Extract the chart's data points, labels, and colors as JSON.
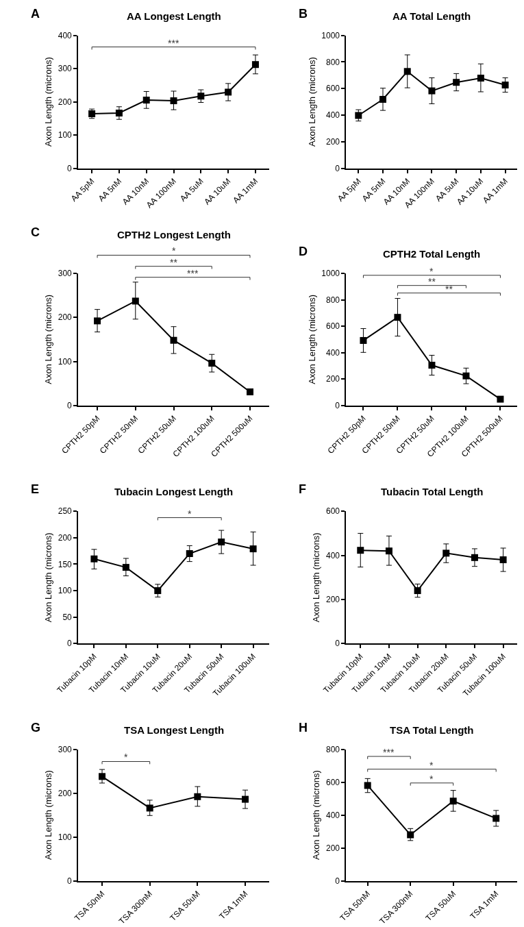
{
  "chart_data": [
    {
      "type": "line",
      "title": "AA Longest Length",
      "ylabel": "Axon Length (microns)",
      "categories": [
        "AA 5pM",
        "AA 5nM",
        "AA 10nM",
        "AA 100nM",
        "AA 5uM",
        "AA 10uM",
        "AA 1mM"
      ],
      "series": [
        {
          "color": "#000000",
          "values": [
            164,
            166,
            205,
            203,
            217,
            229,
            312
          ],
          "errors": [
            [
              150,
              178
            ],
            [
              147,
              185
            ],
            [
              180,
              231
            ],
            [
              176,
              232
            ],
            [
              198,
              236
            ],
            [
              203,
              255
            ],
            [
              284,
              341
            ]
          ]
        }
      ],
      "ylim": [
        0,
        400
      ],
      "yticks": [
        0,
        100,
        200,
        300,
        400
      ],
      "marker": "square",
      "line_style": "solid",
      "annotations": [
        "A",
        "***"
      ]
    },
    {
      "type": "line",
      "title": "AA Total Length",
      "ylabel": "Axon Length (microns)",
      "categories": [
        "AA 5pM",
        "AA 5nM",
        "AA 10nM",
        "AA 100nM",
        "AA 5uM",
        "AA 10uM",
        "AA 1mM"
      ],
      "series": [
        {
          "color": "#000000",
          "values": [
            397,
            518,
            728,
            582,
            646,
            678,
            626
          ],
          "errors": [
            [
              355,
              440
            ],
            [
              435,
              602
            ],
            [
              605,
              853
            ],
            [
              485,
              680
            ],
            [
              582,
              712
            ],
            [
              575,
              785
            ],
            [
              572,
              680
            ]
          ]
        }
      ],
      "ylim": [
        0,
        1000
      ],
      "yticks": [
        0,
        200,
        400,
        600,
        800,
        1000
      ],
      "marker": "square",
      "line_style": "solid",
      "annotations": [
        "B"
      ]
    },
    {
      "type": "line",
      "title": "CPTH2 Longest Length",
      "ylabel": "Axon Length (microns)",
      "categories": [
        "CPTH2 50pM",
        "CPTH2 50nM",
        "CPTH2 50uM",
        "CPTH2 100uM",
        "CPTH2 500uM"
      ],
      "series": [
        {
          "color": "#000000",
          "values": [
            192,
            237,
            148,
            96,
            31
          ],
          "errors": [
            [
              167,
              218
            ],
            [
              196,
              280
            ],
            [
              118,
              179
            ],
            [
              76,
              116
            ],
            null
          ]
        }
      ],
      "ylim": [
        0,
        300
      ],
      "yticks": [
        0,
        100,
        200,
        300
      ],
      "marker": "square",
      "line_style": "solid",
      "annotations": [
        "C",
        "*",
        "**",
        "***"
      ]
    },
    {
      "type": "line",
      "title": "CPTH2 Total Length",
      "ylabel": "Axon Length (microns)",
      "categories": [
        "CPTH2 50pM",
        "CPTH2 50nM",
        "CPTH2 50uM",
        "CPTH2 100uM",
        "CPTH2 500uM"
      ],
      "series": [
        {
          "color": "#000000",
          "values": [
            492,
            667,
            305,
            224,
            48
          ],
          "errors": [
            [
              402,
              582
            ],
            [
              525,
              810
            ],
            [
              230,
              380
            ],
            [
              165,
              283
            ],
            null
          ]
        }
      ],
      "ylim": [
        0,
        1000
      ],
      "yticks": [
        0,
        200,
        400,
        600,
        800,
        1000
      ],
      "marker": "square",
      "line_style": "solid",
      "annotations": [
        "D",
        "*",
        "**",
        "**"
      ]
    },
    {
      "type": "line",
      "title": "Tubacin Longest Length",
      "ylabel": "Axon Length (microns)",
      "categories": [
        "Tubacin 10pM",
        "Tubacin 10nM",
        "Tubacin 10uM",
        "Tubacin 20uM",
        "Tubacin 50uM",
        "Tubacin 100uM"
      ],
      "series": [
        {
          "color": "#000000",
          "values": [
            160,
            144,
            100,
            170,
            192,
            179
          ],
          "errors": [
            [
              141,
              178
            ],
            [
              128,
              161
            ],
            [
              88,
              112
            ],
            [
              155,
              185
            ],
            [
              170,
              214
            ],
            [
              148,
              211
            ]
          ]
        }
      ],
      "ylim": [
        0,
        250
      ],
      "yticks": [
        0,
        50,
        100,
        150,
        200,
        250
      ],
      "marker": "square",
      "line_style": "solid",
      "annotations": [
        "E",
        "*"
      ]
    },
    {
      "type": "line",
      "title": "Tubacin Total Length",
      "ylabel": "Axon Length (microns)",
      "categories": [
        "Tubacin 10pM",
        "Tubacin 10nM",
        "Tubacin 10uM",
        "Tubacin 20uM",
        "Tubacin 50uM",
        "Tubacin 100uM"
      ],
      "series": [
        {
          "color": "#000000",
          "values": [
            423,
            420,
            240,
            410,
            390,
            380
          ],
          "errors": [
            [
              347,
              500
            ],
            [
              355,
              488
            ],
            [
              210,
              270
            ],
            [
              367,
              452
            ],
            [
              350,
              430
            ],
            [
              327,
              433
            ]
          ]
        }
      ],
      "ylim": [
        0,
        600
      ],
      "yticks": [
        0,
        200,
        400,
        600
      ],
      "marker": "square",
      "line_style": "solid",
      "annotations": [
        "F"
      ]
    },
    {
      "type": "line",
      "title": "TSA Longest Length",
      "ylabel": "Axon Length (microns)",
      "categories": [
        "TSA 50nM",
        "TSA 300nM",
        "TSA 50uM",
        "TSA 1mM"
      ],
      "series": [
        {
          "color": "#000000",
          "values": [
            238,
            166,
            192,
            186
          ],
          "errors": [
            [
              223,
              254
            ],
            [
              149,
              184
            ],
            [
              170,
              215
            ],
            [
              165,
              207
            ]
          ]
        }
      ],
      "ylim": [
        0,
        300
      ],
      "yticks": [
        0,
        100,
        200,
        300
      ],
      "marker": "square",
      "line_style": "solid",
      "annotations": [
        "G",
        "*"
      ]
    },
    {
      "type": "line",
      "title": "TSA Total Length",
      "ylabel": "Axon Length (microns)",
      "categories": [
        "TSA 50nM",
        "TSA 300nM",
        "TSA 50uM",
        "TSA 1mM"
      ],
      "series": [
        {
          "color": "#000000",
          "values": [
            580,
            280,
            485,
            380
          ],
          "errors": [
            [
              537,
              622
            ],
            [
              245,
              318
            ],
            [
              423,
              550
            ],
            [
              332,
              428
            ]
          ]
        }
      ],
      "ylim": [
        0,
        800
      ],
      "yticks": [
        0,
        200,
        400,
        600,
        800
      ],
      "marker": "square",
      "line_style": "solid",
      "annotations": [
        "H",
        "***",
        "*",
        "*"
      ]
    }
  ]
}
